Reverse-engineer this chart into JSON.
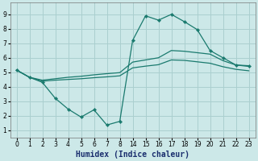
{
  "xlabel": "Humidex (Indice chaleur)",
  "bg_color": "#cce8e8",
  "grid_color": "#aacfcf",
  "line_color": "#1a7a6e",
  "tick_values": [
    0,
    1,
    2,
    3,
    4,
    5,
    6,
    7,
    8,
    14,
    15,
    16,
    17,
    18,
    19,
    20,
    21,
    22,
    23
  ],
  "yticks": [
    1,
    2,
    3,
    4,
    5,
    6,
    7,
    8,
    9
  ],
  "ylim": [
    0.5,
    9.8
  ],
  "line1_pos": [
    0,
    1,
    2,
    3,
    4,
    5,
    6,
    7,
    8,
    9,
    10,
    11,
    12,
    13,
    14,
    15,
    16,
    17,
    18
  ],
  "line1_y": [
    5.15,
    4.65,
    4.3,
    3.2,
    2.45,
    1.9,
    2.4,
    1.35,
    1.6,
    7.2,
    8.9,
    8.6,
    9.0,
    8.5,
    7.95,
    6.5,
    6.0,
    5.5,
    5.45
  ],
  "line2_pos": [
    0,
    1,
    2,
    3,
    4,
    5,
    6,
    7,
    8,
    9,
    10,
    11,
    12,
    13,
    14,
    15,
    16,
    17,
    18
  ],
  "line2_y": [
    5.15,
    4.65,
    4.45,
    4.55,
    4.65,
    4.72,
    4.82,
    4.9,
    4.97,
    5.7,
    5.85,
    6.0,
    6.5,
    6.45,
    6.35,
    6.25,
    5.8,
    5.5,
    5.4
  ],
  "line3_pos": [
    0,
    1,
    2,
    3,
    4,
    5,
    6,
    7,
    8,
    9,
    10,
    11,
    12,
    13,
    14,
    15,
    16,
    17,
    18
  ],
  "line3_y": [
    5.15,
    4.65,
    4.38,
    4.45,
    4.5,
    4.55,
    4.62,
    4.68,
    4.75,
    5.3,
    5.42,
    5.52,
    5.85,
    5.82,
    5.72,
    5.62,
    5.38,
    5.2,
    5.1
  ]
}
